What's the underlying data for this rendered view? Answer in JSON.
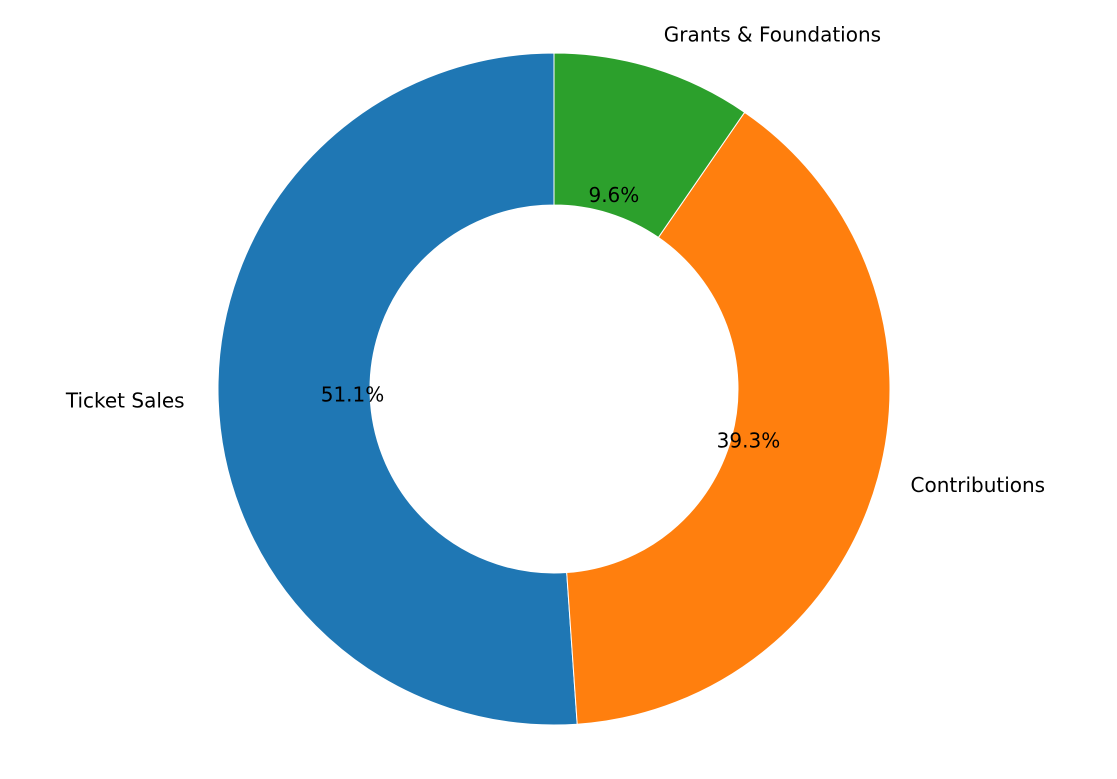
{
  "chart_data": {
    "type": "pie",
    "categories": [
      "Ticket Sales",
      "Contributions",
      "Grants & Foundations"
    ],
    "values": [
      51.1,
      39.3,
      9.6
    ],
    "value_labels": [
      "51.1%",
      "39.3%",
      "9.6%"
    ],
    "colors": [
      "#1f77b4",
      "#ff7f0e",
      "#2ca02c"
    ]
  }
}
